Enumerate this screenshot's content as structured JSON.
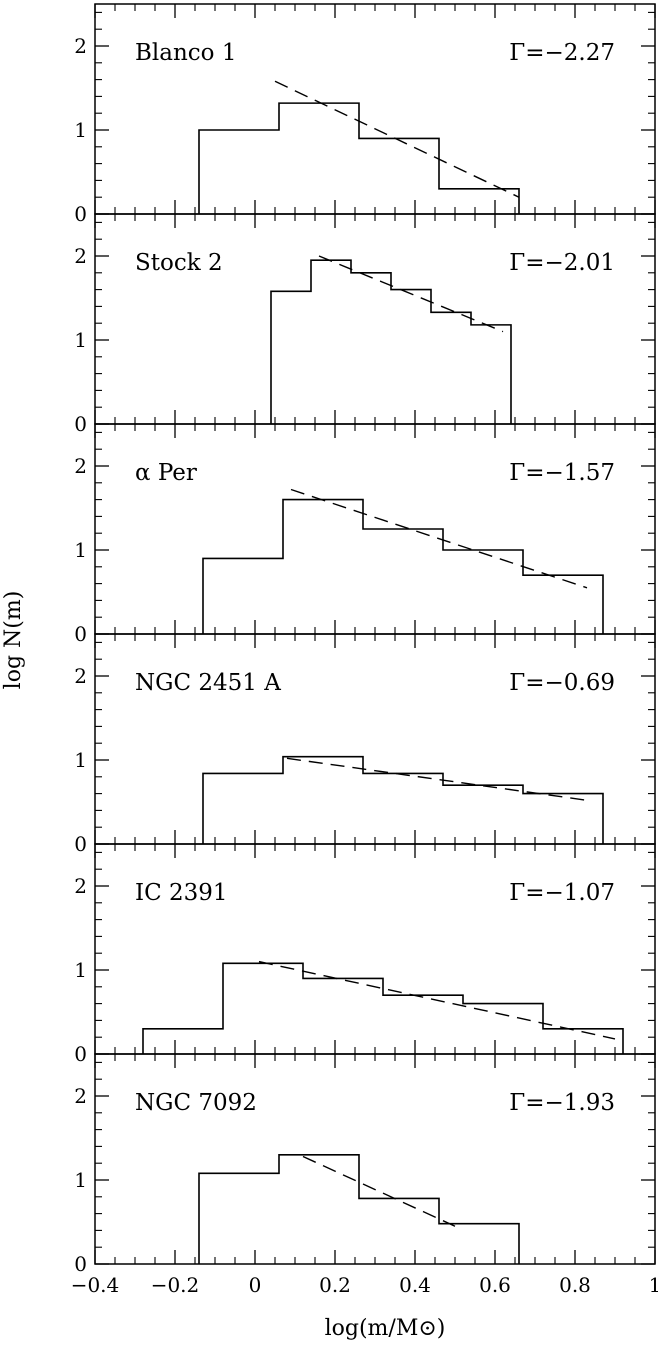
{
  "figure": {
    "xlabel": "log(m/M⊙)",
    "ylabel": "log N(m)",
    "x_tick_labels": [
      "−0.4",
      "−0.2",
      "0",
      "0.2",
      "0.4",
      "0.6",
      "0.8",
      "1"
    ],
    "y_tick_labels": [
      "0",
      "1",
      "2"
    ]
  },
  "chart_data": [
    {
      "type": "histogram",
      "title": "Blanco 1",
      "gamma_label": "Γ=−2.27",
      "xlim": [
        -0.4,
        1.0
      ],
      "ylim": [
        0,
        2.5
      ],
      "bin_edges": [
        -0.14,
        0.06,
        0.26,
        0.46,
        0.66
      ],
      "values": [
        1.0,
        1.32,
        0.9,
        0.3
      ],
      "fit_line": {
        "x": [
          0.05,
          0.66
        ],
        "y": [
          1.58,
          0.2
        ]
      }
    },
    {
      "type": "histogram",
      "title": "Stock 2",
      "gamma_label": "Γ=−2.01",
      "xlim": [
        -0.4,
        1.0
      ],
      "ylim": [
        0,
        2.5
      ],
      "bin_edges": [
        0.04,
        0.14,
        0.24,
        0.34,
        0.44,
        0.54,
        0.64
      ],
      "values": [
        1.58,
        1.95,
        1.8,
        1.6,
        1.33,
        1.18
      ],
      "fit_line": {
        "x": [
          0.16,
          0.62
        ],
        "y": [
          2.0,
          1.1
        ]
      }
    },
    {
      "type": "histogram",
      "title": "α Per",
      "gamma_label": "Γ=−1.57",
      "xlim": [
        -0.4,
        1.0
      ],
      "ylim": [
        0,
        2.5
      ],
      "bin_edges": [
        -0.13,
        0.07,
        0.27,
        0.47,
        0.67,
        0.87
      ],
      "values": [
        0.9,
        1.6,
        1.25,
        1.0,
        0.7
      ],
      "fit_line": {
        "x": [
          0.09,
          0.83
        ],
        "y": [
          1.72,
          0.55
        ]
      }
    },
    {
      "type": "histogram",
      "title": "NGC 2451 A",
      "gamma_label": "Γ=−0.69",
      "xlim": [
        -0.4,
        1.0
      ],
      "ylim": [
        0,
        2.5
      ],
      "bin_edges": [
        -0.13,
        0.07,
        0.27,
        0.47,
        0.67,
        0.87
      ],
      "values": [
        0.84,
        1.04,
        0.84,
        0.7,
        0.6
      ],
      "fit_line": {
        "x": [
          0.08,
          0.83
        ],
        "y": [
          1.02,
          0.52
        ]
      }
    },
    {
      "type": "histogram",
      "title": "IC 2391",
      "gamma_label": "Γ=−1.07",
      "xlim": [
        -0.4,
        1.0
      ],
      "ylim": [
        0,
        2.5
      ],
      "bin_edges": [
        -0.28,
        -0.08,
        0.12,
        0.32,
        0.52,
        0.72,
        0.92
      ],
      "values": [
        0.3,
        1.08,
        0.9,
        0.7,
        0.6,
        0.3
      ],
      "fit_line": {
        "x": [
          0.01,
          0.9
        ],
        "y": [
          1.1,
          0.18
        ]
      }
    },
    {
      "type": "histogram",
      "title": "NGC 7092",
      "gamma_label": "Γ=−1.93",
      "xlim": [
        -0.4,
        1.0
      ],
      "ylim": [
        0,
        2.5
      ],
      "bin_edges": [
        -0.14,
        0.06,
        0.26,
        0.46,
        0.66
      ],
      "values": [
        1.08,
        1.3,
        0.78,
        0.48
      ],
      "fit_line": {
        "x": [
          0.12,
          0.5
        ],
        "y": [
          1.28,
          0.45
        ]
      }
    }
  ]
}
